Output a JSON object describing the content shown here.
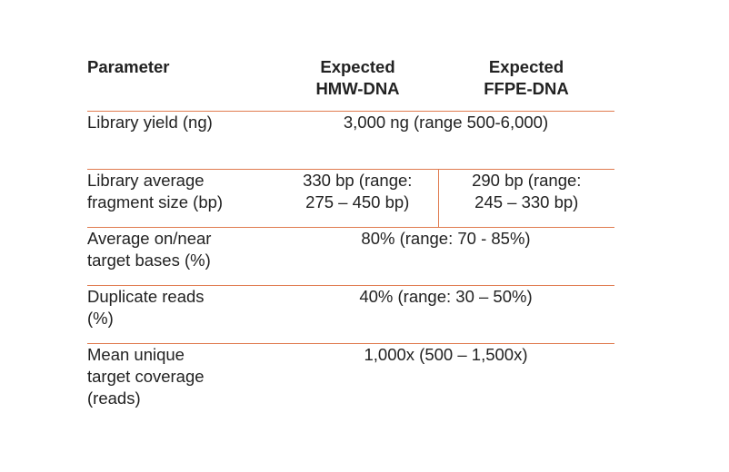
{
  "header": {
    "parameter": "Parameter",
    "hmw": [
      "Expected",
      "HMW-DNA"
    ],
    "ffpe": [
      "Expected",
      "FFPE-DNA"
    ]
  },
  "rows": [
    {
      "label": "Library yield (ng)",
      "value": "3,000 ng (range 500-6,000)"
    },
    {
      "label_lines": [
        "Library average",
        "fragment size (bp)"
      ],
      "hmw_lines": [
        "330 bp (range:",
        "275 – 450 bp)"
      ],
      "ffpe_lines": [
        "290 bp (range:",
        "245 – 330 bp)"
      ]
    },
    {
      "label_lines": [
        "Average on/near",
        "target bases (%)"
      ],
      "value": "80% (range: 70 - 85%)"
    },
    {
      "label_lines": [
        "Duplicate reads",
        "(%)"
      ],
      "value": "40% (range: 30 – 50%)"
    },
    {
      "label_lines": [
        "Mean unique",
        "target coverage",
        "(reads)"
      ],
      "value": "1,000x (500 – 1,500x)"
    }
  ]
}
